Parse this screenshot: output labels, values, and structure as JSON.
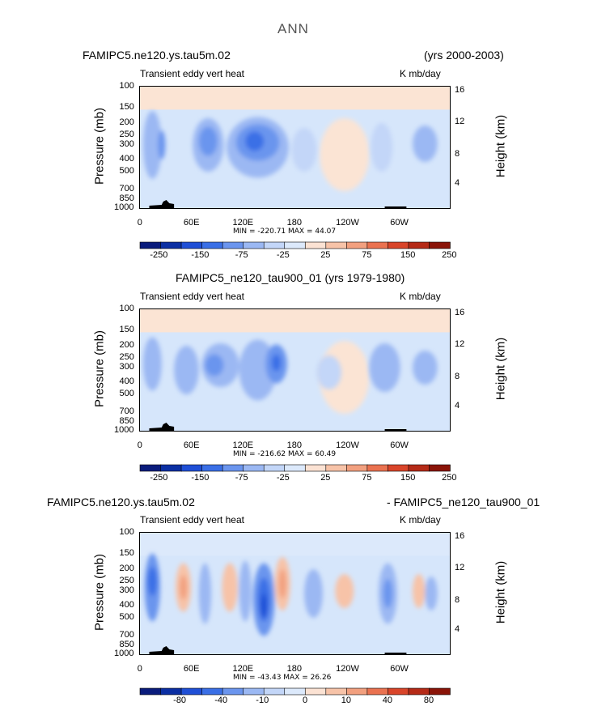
{
  "figure_title": "ANN",
  "chart_data": [
    {
      "type": "heatmap",
      "panel_title_left": "FAMIPC5.ne120.ys.tau5m.02",
      "panel_title_right": "(yrs 2000-2003)",
      "subtitle_left": "Transient eddy vert heat",
      "units": "K mb/day",
      "ylabel_left": "Pressure (mb)",
      "ylabel_right": "Height (km)",
      "y_ticks": [
        "100",
        "150",
        "200",
        "250",
        "300",
        "400",
        "500",
        "700",
        "850",
        "1000"
      ],
      "right_ticks": [
        "16",
        "12",
        "8",
        "4"
      ],
      "x_ticks": [
        "0",
        "60E",
        "120E",
        "180",
        "120W",
        "60W"
      ],
      "min_max_text": "MIN = -220.71   MAX =  44.07",
      "min": -220.71,
      "max": 44.07,
      "colorbar_labels": [
        "-250",
        "-150",
        "-75",
        "-25",
        "25",
        "75",
        "150",
        "250"
      ]
    },
    {
      "type": "heatmap",
      "panel_title_center": "FAMIPC5_ne120_tau900_01 (yrs 1979-1980)",
      "subtitle_left": "Transient eddy vert heat",
      "units": "K mb/day",
      "ylabel_left": "Pressure (mb)",
      "ylabel_right": "Height (km)",
      "y_ticks": [
        "100",
        "150",
        "200",
        "250",
        "300",
        "400",
        "500",
        "700",
        "850",
        "1000"
      ],
      "right_ticks": [
        "16",
        "12",
        "8",
        "4"
      ],
      "x_ticks": [
        "0",
        "60E",
        "120E",
        "180",
        "120W",
        "60W"
      ],
      "min_max_text": "MIN = -216.62   MAX =  60.49",
      "min": -216.62,
      "max": 60.49,
      "colorbar_labels": [
        "-250",
        "-150",
        "-75",
        "-25",
        "25",
        "75",
        "150",
        "250"
      ]
    },
    {
      "type": "heatmap",
      "panel_title_left": "FAMIPC5.ne120.ys.tau5m.02",
      "panel_title_right": "- FAMIPC5_ne120_tau900_01",
      "subtitle_left": "Transient eddy vert heat",
      "units": "K mb/day",
      "ylabel_left": "Pressure (mb)",
      "ylabel_right": "Height (km)",
      "y_ticks": [
        "100",
        "150",
        "200",
        "250",
        "300",
        "400",
        "500",
        "700",
        "850",
        "1000"
      ],
      "right_ticks": [
        "16",
        "12",
        "8",
        "4"
      ],
      "x_ticks": [
        "0",
        "60E",
        "120E",
        "180",
        "120W",
        "60W"
      ],
      "min_max_text": "MIN = -43.43   MAX =  26.26",
      "min": -43.43,
      "max": 26.26,
      "colorbar_labels": [
        "-80",
        "-40",
        "-10",
        "0",
        "10",
        "40",
        "80"
      ]
    }
  ],
  "colors": {
    "levels": [
      "#0a1c7c",
      "#0b2fa3",
      "#1f4fd6",
      "#3a6fe6",
      "#6b95ee",
      "#9bb8f3",
      "#c3d6f8",
      "#dce9fb",
      "#fbe2d3",
      "#f7c3a8",
      "#f2a07f",
      "#ea7250",
      "#d9452a",
      "#b52a17",
      "#8a1408"
    ],
    "background_blue": "#d6e6fb",
    "background_peach": "#fbe4d4",
    "terrain": "#000000"
  }
}
